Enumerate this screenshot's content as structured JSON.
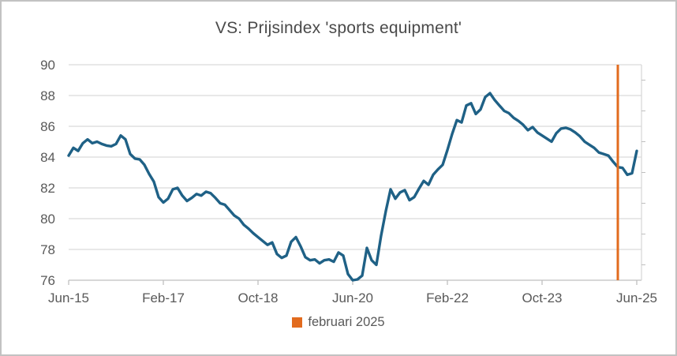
{
  "title": "VS: Prijsindex 'sports equipment'",
  "legend": {
    "label": "februari 2025"
  },
  "colors": {
    "line": "#1f6186",
    "marker": "#e26b1e",
    "grid": "#d9d9d9",
    "axis": "#bfbfbf",
    "text": "#595959",
    "title_text": "#4a4a4a",
    "background": "#ffffff"
  },
  "chart_data": {
    "type": "line",
    "title": "VS: Prijsindex 'sports equipment'",
    "xlabel": "",
    "ylabel": "",
    "ylim": [
      76,
      90
    ],
    "y_ticks": [
      76,
      78,
      80,
      82,
      84,
      86,
      88,
      90
    ],
    "grid": "horizontal",
    "legend_position": "bottom",
    "x_start": "2015-06",
    "x_end": "2025-06",
    "frequency": "monthly",
    "x_tick_labels": [
      "Jun-15",
      "Feb-17",
      "Oct-18",
      "Jun-20",
      "Feb-22",
      "Oct-23",
      "Jun-25"
    ],
    "x_tick_month_indices": [
      0,
      20,
      40,
      60,
      80,
      100,
      120
    ],
    "annotation": {
      "type": "vline",
      "label": "februari 2025",
      "month_index": 116
    },
    "series": [
      {
        "name": "Prijsindex sports equipment",
        "values": [
          84.1,
          84.6,
          84.4,
          84.9,
          85.15,
          84.9,
          85.0,
          84.85,
          84.75,
          84.7,
          84.85,
          85.4,
          85.15,
          84.2,
          83.9,
          83.85,
          83.5,
          82.9,
          82.4,
          81.4,
          81.05,
          81.3,
          81.9,
          82.0,
          81.5,
          81.15,
          81.35,
          81.6,
          81.5,
          81.75,
          81.65,
          81.35,
          81.0,
          80.9,
          80.55,
          80.2,
          80.0,
          79.6,
          79.35,
          79.05,
          78.8,
          78.55,
          78.3,
          78.45,
          77.7,
          77.45,
          77.6,
          78.5,
          78.8,
          78.2,
          77.5,
          77.3,
          77.35,
          77.1,
          77.3,
          77.35,
          77.2,
          77.8,
          77.6,
          76.4,
          76.0,
          76.05,
          76.3,
          78.1,
          77.3,
          77.0,
          78.9,
          80.5,
          81.9,
          81.3,
          81.7,
          81.85,
          81.2,
          81.4,
          81.95,
          82.45,
          82.2,
          82.85,
          83.2,
          83.5,
          84.45,
          85.5,
          86.4,
          86.25,
          87.35,
          87.5,
          86.8,
          87.1,
          87.9,
          88.15,
          87.7,
          87.35,
          87.0,
          86.85,
          86.55,
          86.35,
          86.1,
          85.75,
          85.95,
          85.6,
          85.4,
          85.2,
          85.0,
          85.55,
          85.85,
          85.9,
          85.8,
          85.6,
          85.35,
          85.0,
          84.8,
          84.6,
          84.3,
          84.2,
          84.1,
          83.7,
          83.35,
          83.3,
          82.85,
          82.95,
          84.4
        ]
      }
    ]
  }
}
